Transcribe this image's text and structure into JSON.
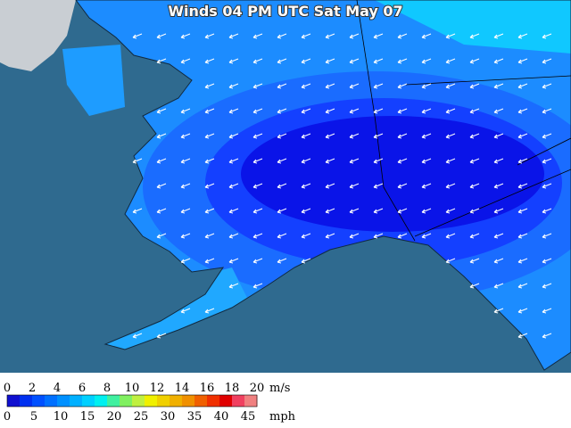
{
  "title": "Winds 04 PM UTC Sat May 07",
  "legend": {
    "colors": [
      "#1010d0",
      "#0030f0",
      "#0050ff",
      "#0070ff",
      "#0090ff",
      "#00b0ff",
      "#00d0ff",
      "#00f0f0",
      "#40f0a0",
      "#80f060",
      "#c0f040",
      "#f0f000",
      "#f0d000",
      "#f0b000",
      "#f09000",
      "#f06000",
      "#f03000",
      "#e00000",
      "#f04060",
      "#f08080"
    ],
    "ms_labels": [
      0,
      2,
      4,
      6,
      8,
      10,
      12,
      14,
      16,
      18,
      20
    ],
    "ms_unit": "m/s",
    "mph_labels": [
      0,
      5,
      10,
      15,
      20,
      25,
      30,
      35,
      40,
      45
    ],
    "mph_unit": "mph"
  }
}
